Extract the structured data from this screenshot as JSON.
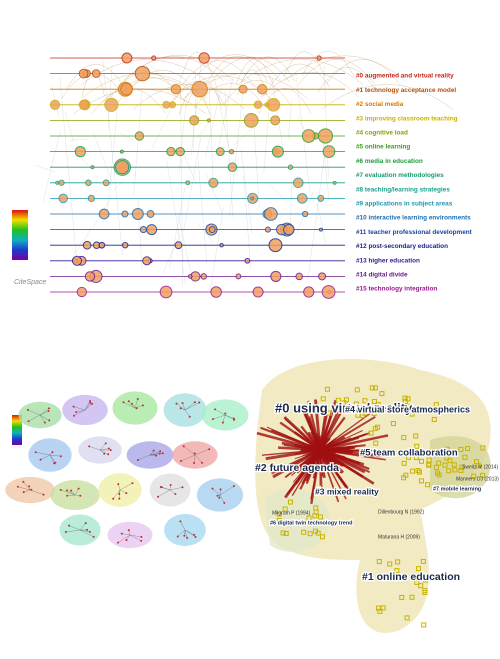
{
  "timeline": {
    "logo": "CiteSpace",
    "clusters": [
      {
        "label": "#0 augmented and virtual reality",
        "color": "#c0281e"
      },
      {
        "label": "#1 technology acceptance model",
        "color": "#b4500a"
      },
      {
        "label": "#2 social media",
        "color": "#d27a00"
      },
      {
        "label": "#3 improving classroom teaching",
        "color": "#c8b000"
      },
      {
        "label": "#4 cognitive load",
        "color": "#8ca000"
      },
      {
        "label": "#5 online learning",
        "color": "#3c9c1e"
      },
      {
        "label": "#6 media in education",
        "color": "#1e9a3c"
      },
      {
        "label": "#7 evaluation methodologies",
        "color": "#1a9a6e"
      },
      {
        "label": "#8 teaching/learning strategies",
        "color": "#1aa08c"
      },
      {
        "label": "#9 applications in subject areas",
        "color": "#1a98b0"
      },
      {
        "label": "#10 interactive learning environments",
        "color": "#1a6eb0"
      },
      {
        "label": "#11 teacher professional development",
        "color": "#1a46a0"
      },
      {
        "label": "#12 post-secondary education",
        "color": "#1a2490"
      },
      {
        "label": "#13 higher education",
        "color": "#3a1a90"
      },
      {
        "label": "#14 digital divide",
        "color": "#6a1a90"
      },
      {
        "label": "#15 technology integration",
        "color": "#9a1a90"
      }
    ]
  },
  "network": {
    "clusters": [
      {
        "label": "#0 using virtual reality"
      },
      {
        "label": "#1 online education"
      },
      {
        "label": "#2 future agenda"
      },
      {
        "label": "#3 mixed reality"
      },
      {
        "label": "#4 virtual store atmospherics"
      },
      {
        "label": "#5 team collaboration"
      },
      {
        "label": "#6 digital twin technology trend"
      },
      {
        "label": "#7 mobile learning"
      }
    ],
    "authors": [
      "Milgram P (1994)",
      "Dillenbourg N (1992)",
      "Maturana H (2009)",
      "Sweitz M (2014)",
      "Manners DJ (2013)"
    ]
  }
}
